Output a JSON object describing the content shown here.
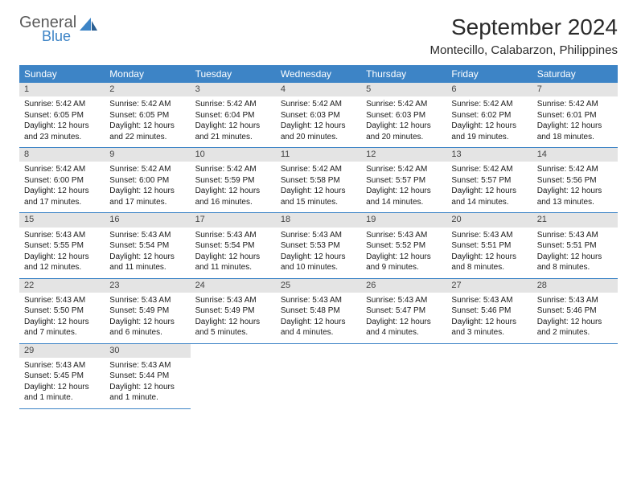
{
  "logo": {
    "general": "General",
    "blue": "Blue"
  },
  "title": "September 2024",
  "location": "Montecillo, Calabarzon, Philippines",
  "colors": {
    "header_bg": "#3d84c6",
    "header_text": "#ffffff",
    "daynum_bg": "#e4e4e4",
    "row_border": "#3d84c6",
    "logo_gray": "#5a5a5a",
    "logo_blue": "#3d84c6"
  },
  "weekdays": [
    "Sunday",
    "Monday",
    "Tuesday",
    "Wednesday",
    "Thursday",
    "Friday",
    "Saturday"
  ],
  "weeks": [
    [
      {
        "n": "1",
        "sr": "5:42 AM",
        "ss": "6:05 PM",
        "dl": "12 hours and 23 minutes."
      },
      {
        "n": "2",
        "sr": "5:42 AM",
        "ss": "6:05 PM",
        "dl": "12 hours and 22 minutes."
      },
      {
        "n": "3",
        "sr": "5:42 AM",
        "ss": "6:04 PM",
        "dl": "12 hours and 21 minutes."
      },
      {
        "n": "4",
        "sr": "5:42 AM",
        "ss": "6:03 PM",
        "dl": "12 hours and 20 minutes."
      },
      {
        "n": "5",
        "sr": "5:42 AM",
        "ss": "6:03 PM",
        "dl": "12 hours and 20 minutes."
      },
      {
        "n": "6",
        "sr": "5:42 AM",
        "ss": "6:02 PM",
        "dl": "12 hours and 19 minutes."
      },
      {
        "n": "7",
        "sr": "5:42 AM",
        "ss": "6:01 PM",
        "dl": "12 hours and 18 minutes."
      }
    ],
    [
      {
        "n": "8",
        "sr": "5:42 AM",
        "ss": "6:00 PM",
        "dl": "12 hours and 17 minutes."
      },
      {
        "n": "9",
        "sr": "5:42 AM",
        "ss": "6:00 PM",
        "dl": "12 hours and 17 minutes."
      },
      {
        "n": "10",
        "sr": "5:42 AM",
        "ss": "5:59 PM",
        "dl": "12 hours and 16 minutes."
      },
      {
        "n": "11",
        "sr": "5:42 AM",
        "ss": "5:58 PM",
        "dl": "12 hours and 15 minutes."
      },
      {
        "n": "12",
        "sr": "5:42 AM",
        "ss": "5:57 PM",
        "dl": "12 hours and 14 minutes."
      },
      {
        "n": "13",
        "sr": "5:42 AM",
        "ss": "5:57 PM",
        "dl": "12 hours and 14 minutes."
      },
      {
        "n": "14",
        "sr": "5:42 AM",
        "ss": "5:56 PM",
        "dl": "12 hours and 13 minutes."
      }
    ],
    [
      {
        "n": "15",
        "sr": "5:43 AM",
        "ss": "5:55 PM",
        "dl": "12 hours and 12 minutes."
      },
      {
        "n": "16",
        "sr": "5:43 AM",
        "ss": "5:54 PM",
        "dl": "12 hours and 11 minutes."
      },
      {
        "n": "17",
        "sr": "5:43 AM",
        "ss": "5:54 PM",
        "dl": "12 hours and 11 minutes."
      },
      {
        "n": "18",
        "sr": "5:43 AM",
        "ss": "5:53 PM",
        "dl": "12 hours and 10 minutes."
      },
      {
        "n": "19",
        "sr": "5:43 AM",
        "ss": "5:52 PM",
        "dl": "12 hours and 9 minutes."
      },
      {
        "n": "20",
        "sr": "5:43 AM",
        "ss": "5:51 PM",
        "dl": "12 hours and 8 minutes."
      },
      {
        "n": "21",
        "sr": "5:43 AM",
        "ss": "5:51 PM",
        "dl": "12 hours and 8 minutes."
      }
    ],
    [
      {
        "n": "22",
        "sr": "5:43 AM",
        "ss": "5:50 PM",
        "dl": "12 hours and 7 minutes."
      },
      {
        "n": "23",
        "sr": "5:43 AM",
        "ss": "5:49 PM",
        "dl": "12 hours and 6 minutes."
      },
      {
        "n": "24",
        "sr": "5:43 AM",
        "ss": "5:49 PM",
        "dl": "12 hours and 5 minutes."
      },
      {
        "n": "25",
        "sr": "5:43 AM",
        "ss": "5:48 PM",
        "dl": "12 hours and 4 minutes."
      },
      {
        "n": "26",
        "sr": "5:43 AM",
        "ss": "5:47 PM",
        "dl": "12 hours and 4 minutes."
      },
      {
        "n": "27",
        "sr": "5:43 AM",
        "ss": "5:46 PM",
        "dl": "12 hours and 3 minutes."
      },
      {
        "n": "28",
        "sr": "5:43 AM",
        "ss": "5:46 PM",
        "dl": "12 hours and 2 minutes."
      }
    ],
    [
      {
        "n": "29",
        "sr": "5:43 AM",
        "ss": "5:45 PM",
        "dl": "12 hours and 1 minute."
      },
      {
        "n": "30",
        "sr": "5:43 AM",
        "ss": "5:44 PM",
        "dl": "12 hours and 1 minute."
      },
      null,
      null,
      null,
      null,
      null
    ]
  ],
  "labels": {
    "sunrise": "Sunrise:",
    "sunset": "Sunset:",
    "daylight": "Daylight:"
  }
}
